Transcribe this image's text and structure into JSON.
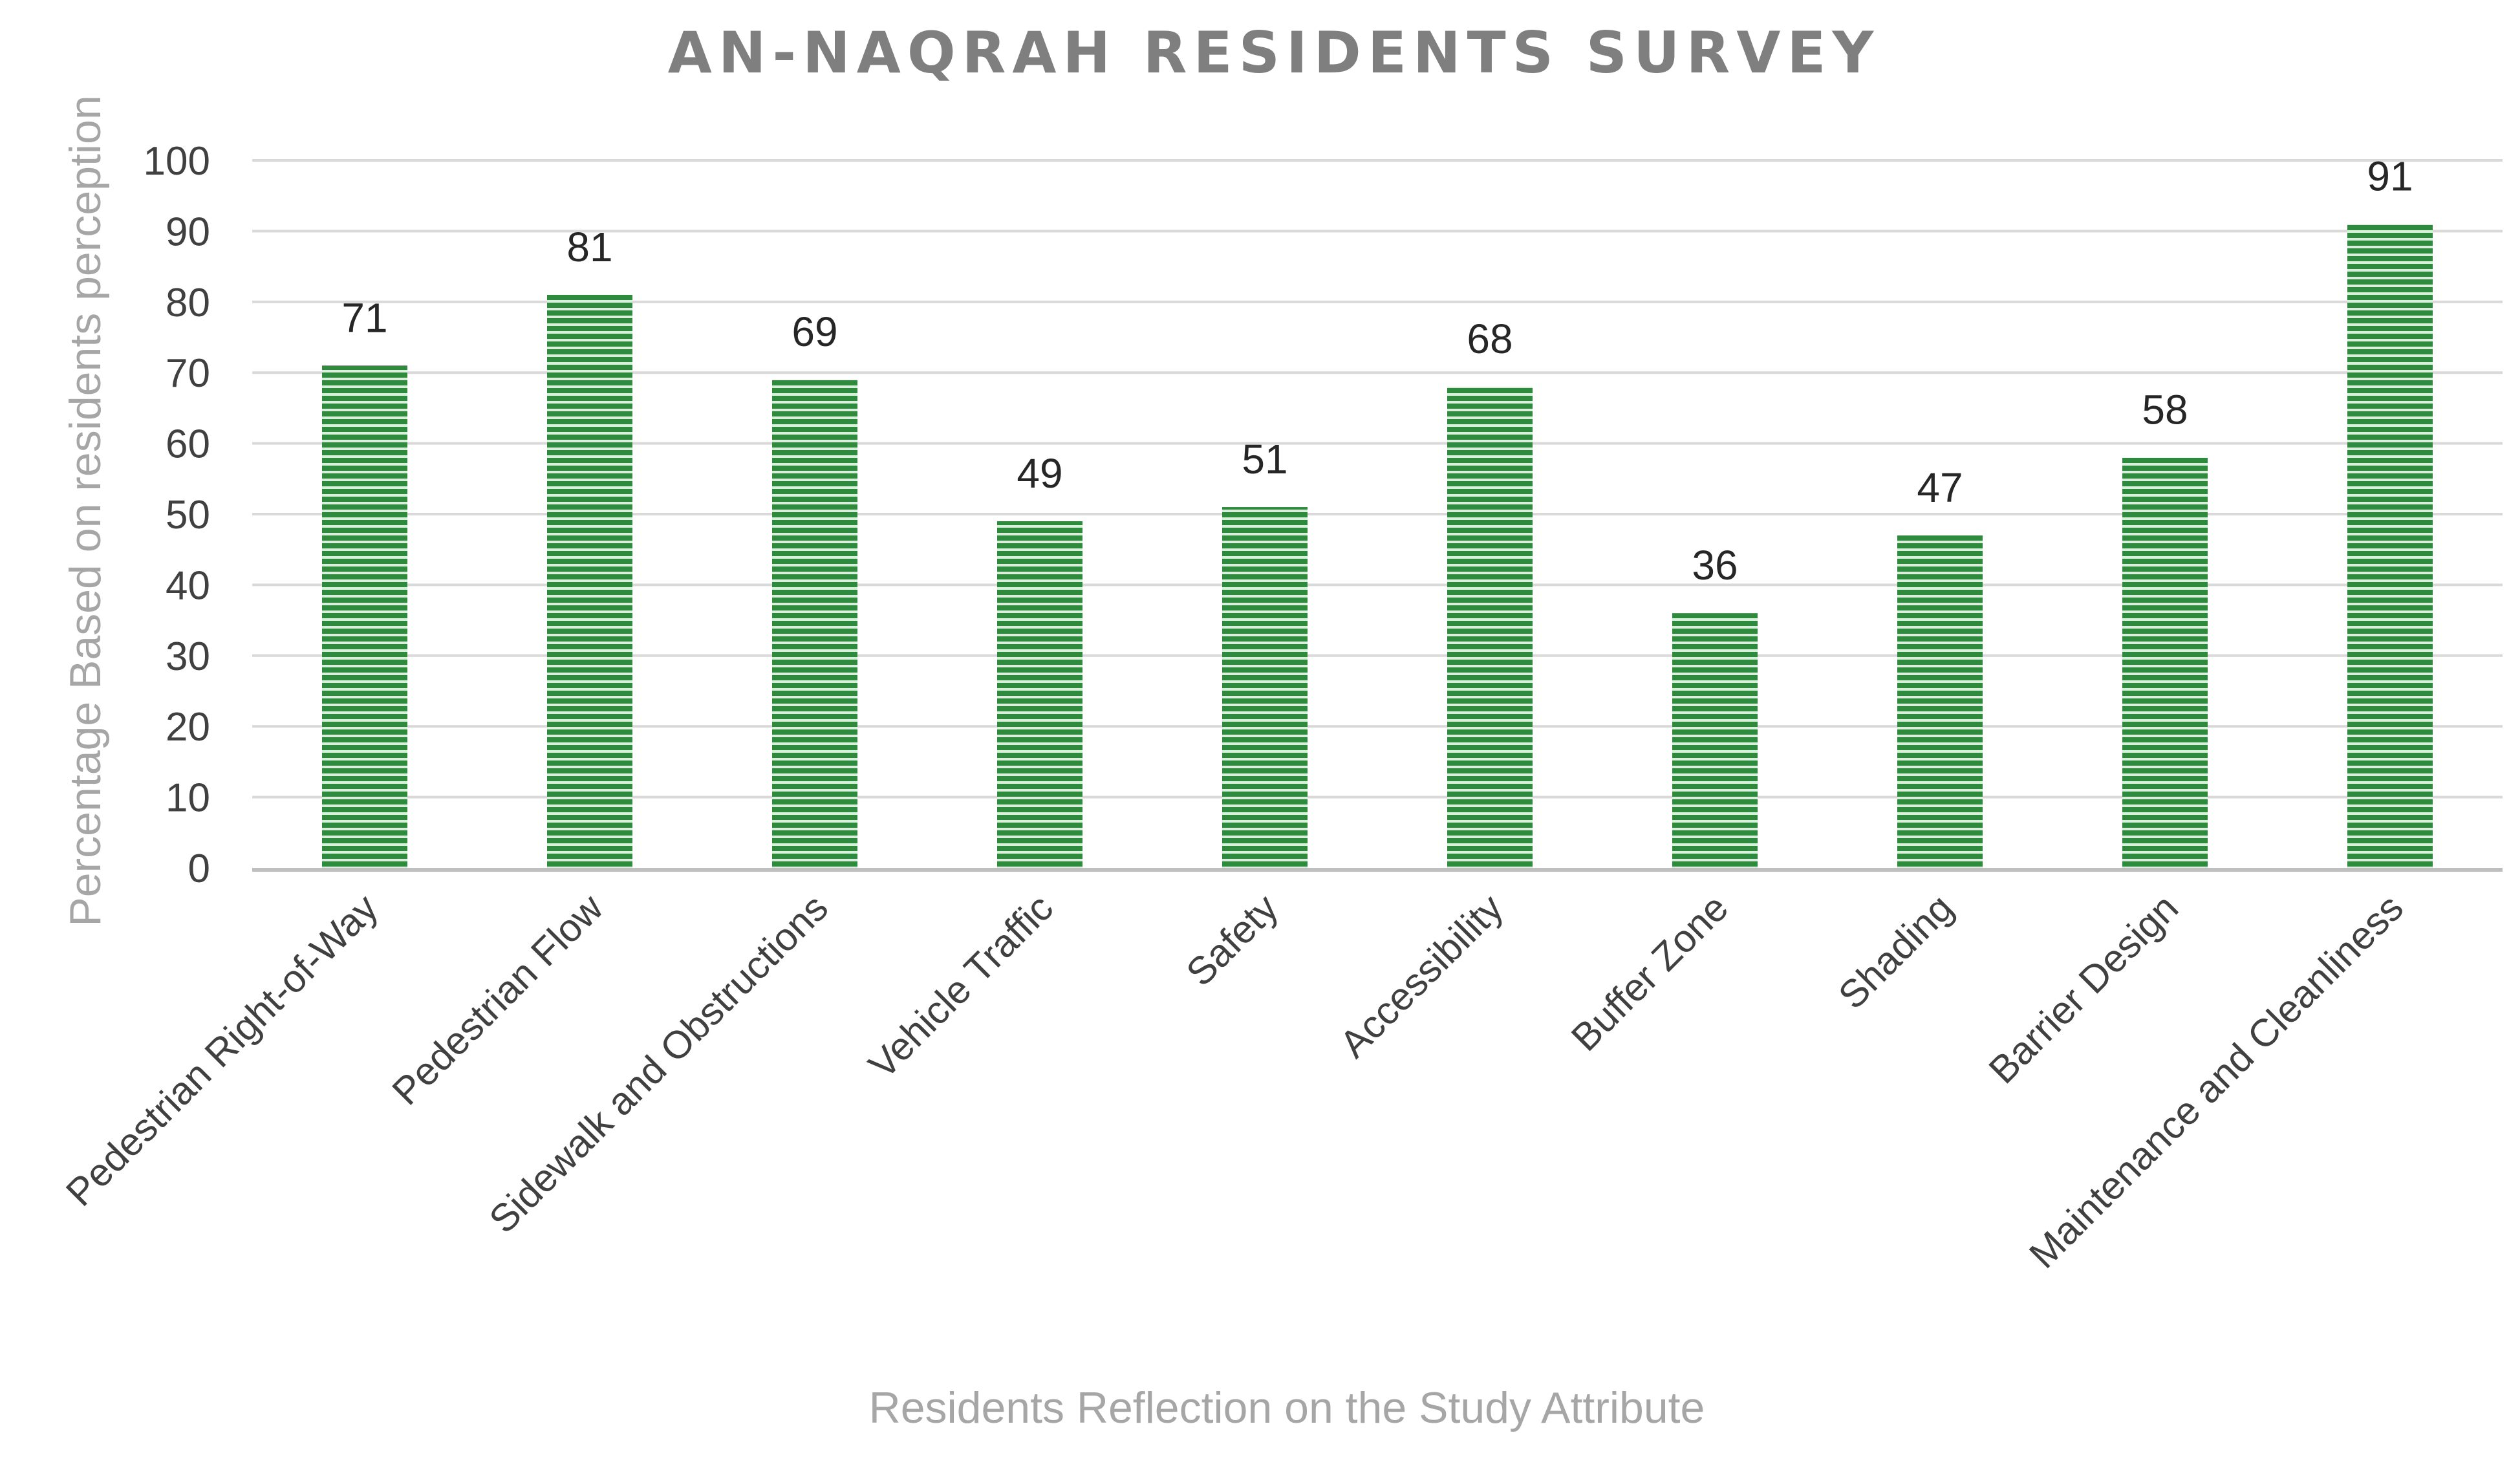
{
  "chart_data": {
    "type": "bar",
    "title": "AN-NAQRAH RESIDENTS SURVEY",
    "xlabel": "Residents Reflection on the Study Attribute",
    "ylabel": "Percentage Based on residents perception",
    "categories": [
      "Pedestrian Right-of-Way",
      "Pedestrian Flow",
      "Sidewalk and Obstructions",
      "Vehicle Traffic",
      "Safety",
      "Accessibility",
      "Buffer Zone",
      "Shading",
      "Barrier Design",
      "Maintenance and Cleanliness"
    ],
    "values": [
      71,
      81,
      69,
      49,
      51,
      68,
      36,
      47,
      58,
      91
    ],
    "ylim": [
      0,
      100
    ],
    "yticks": [
      0,
      10,
      20,
      30,
      40,
      50,
      60,
      70,
      80,
      90,
      100
    ],
    "grid": true,
    "data_labels": true,
    "colors": {
      "bar": "#2e8b3d",
      "bar_stripe": "#d8efd9",
      "title": "#7f7f7f",
      "axis_title": "#a6a6a6",
      "grid": "#d9d9d9",
      "axis": "#bfbfbf"
    }
  }
}
